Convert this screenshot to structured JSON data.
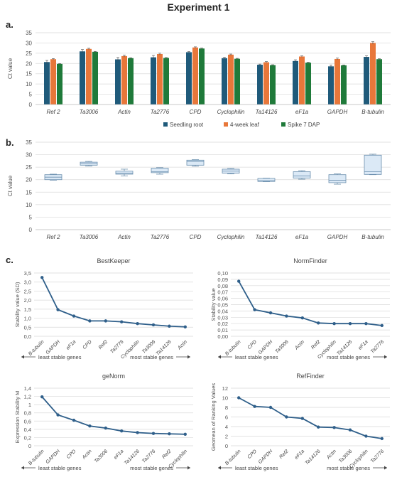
{
  "title": "Experiment 1",
  "panel_labels": [
    "a.",
    "b.",
    "c."
  ],
  "chart_data": [
    {
      "type": "bar",
      "panel": "a.",
      "ylabel": "Ct value",
      "ylim": [
        0,
        35
      ],
      "yticks": [
        0,
        5,
        10,
        15,
        20,
        25,
        30,
        35
      ],
      "categories": [
        "Ref 2",
        "Ta3006",
        "Actin",
        "Ta2776",
        "CPD",
        "Cyclophilin",
        "Ta14126",
        "eF1a",
        "GAPDH",
        "B-tubulin"
      ],
      "series": [
        {
          "name": "Seedling root",
          "color": "#1f5a7a",
          "values": [
            20.7,
            25.9,
            22.0,
            23.0,
            25.5,
            22.6,
            19.4,
            21.2,
            18.6,
            23.2
          ]
        },
        {
          "name": "4-week leaf",
          "color": "#e8773a",
          "values": [
            22.1,
            27.1,
            23.6,
            24.6,
            27.8,
            24.3,
            20.6,
            23.4,
            22.2,
            30.0
          ]
        },
        {
          "name": "Spike 7 DAP",
          "color": "#1f7a3a",
          "values": [
            19.8,
            25.7,
            22.6,
            22.7,
            27.3,
            22.3,
            19.2,
            20.4,
            19.1,
            22.1
          ]
        }
      ],
      "errors": [
        [
          0.8,
          0.9,
          0.9,
          0.9,
          0.3,
          0.4,
          0.3,
          0.6,
          0.6,
          0.5
        ],
        [
          0.3,
          0.3,
          0.5,
          0.4,
          0.3,
          0.3,
          0.3,
          0.3,
          0.4,
          0.6
        ],
        [
          0.2,
          0.2,
          0.2,
          0.2,
          0.2,
          0.2,
          0.2,
          0.2,
          0.2,
          0.2
        ]
      ],
      "legend": "bottom"
    },
    {
      "type": "boxplot",
      "panel": "b.",
      "ylabel": "Ct value",
      "ylim": [
        0,
        35
      ],
      "yticks": [
        0,
        5,
        10,
        15,
        20,
        25,
        30,
        35
      ],
      "categories": [
        "Ref 2",
        "Ta3006",
        "Actin",
        "Ta2776",
        "CPD",
        "Cyclophilin",
        "Ta14126",
        "eF1a",
        "GAPDH",
        "B-tubulin"
      ],
      "boxes": [
        {
          "min": 19.8,
          "q1": 20.0,
          "median": 21.0,
          "q3": 22.0,
          "max": 22.2
        },
        {
          "min": 25.5,
          "q1": 25.8,
          "median": 26.5,
          "q3": 27.0,
          "max": 27.3
        },
        {
          "min": 21.5,
          "q1": 22.2,
          "median": 22.6,
          "q3": 23.4,
          "max": 24.2
        },
        {
          "min": 22.2,
          "q1": 22.8,
          "median": 23.2,
          "q3": 24.6,
          "max": 24.8
        },
        {
          "min": 25.4,
          "q1": 25.8,
          "median": 27.3,
          "q3": 27.8,
          "max": 28.0
        },
        {
          "min": 22.3,
          "q1": 22.6,
          "median": 23.4,
          "q3": 24.2,
          "max": 24.5
        },
        {
          "min": 19.2,
          "q1": 19.3,
          "median": 19.6,
          "q3": 20.5,
          "max": 20.6
        },
        {
          "min": 20.2,
          "q1": 20.6,
          "median": 21.5,
          "q3": 23.2,
          "max": 23.6
        },
        {
          "min": 18.2,
          "q1": 18.8,
          "median": 19.8,
          "q3": 22.0,
          "max": 22.3
        },
        {
          "min": 22.0,
          "q1": 22.1,
          "median": 23.2,
          "q3": 29.8,
          "max": 30.2
        }
      ]
    },
    {
      "type": "line",
      "panel": "c.",
      "title": "BestKeeper",
      "ylabel": "Stability value (SD)",
      "ylim": [
        0,
        3.5
      ],
      "yticks": [
        "0,0",
        "0,5",
        "1,0",
        "1,5",
        "2,0",
        "2,5",
        "3,0",
        "3,5"
      ],
      "categories": [
        "B-tubulin",
        "GAPDH",
        "eF1a",
        "CPD",
        "Ref2",
        "Ta2776",
        "Cyclophilin",
        "Ta3006",
        "Ta14126",
        "Actin"
      ],
      "values": [
        3.25,
        1.47,
        1.12,
        0.85,
        0.85,
        0.8,
        0.7,
        0.63,
        0.56,
        0.52
      ],
      "arrow_left": "least stable genes",
      "arrow_right": "most stable genes"
    },
    {
      "type": "line",
      "panel": "c.",
      "title": "NormFinder",
      "ylabel": "Stability value",
      "ylim": [
        0,
        0.1
      ],
      "yticks": [
        "0,00",
        "0,01",
        "0,02",
        "0,03",
        "0,04",
        "0,05",
        "0,06",
        "0,07",
        "0,08",
        "0,09",
        "0,10"
      ],
      "categories": [
        "B-tubulin",
        "CPD",
        "GAPDH",
        "Ta3006",
        "Actin",
        "Ref2",
        "Cyclophilin",
        "Ta14126",
        "eF1a",
        "Ta2776"
      ],
      "values": [
        0.087,
        0.042,
        0.037,
        0.032,
        0.029,
        0.021,
        0.02,
        0.02,
        0.02,
        0.017
      ],
      "arrow_left": "least stable genes",
      "arrow_right": "most stable genes"
    },
    {
      "type": "line",
      "panel": "c.",
      "title": "geNorm",
      "ylabel": "Expression Stability M",
      "ylim": [
        0,
        1.4
      ],
      "yticks": [
        "0",
        "0,2",
        "0,4",
        "0,6",
        "0,8",
        "1",
        "1,2",
        "1,4"
      ],
      "categories": [
        "B-tubulin",
        "GAPDH",
        "CPD",
        "Actin",
        "Ta3006",
        "eF1a",
        "Ta14126",
        "Ta2776",
        "Ref2",
        "Cyclophilin"
      ],
      "values": [
        1.19,
        0.75,
        0.62,
        0.48,
        0.43,
        0.36,
        0.32,
        0.3,
        0.29,
        0.28
      ],
      "arrow_left": "least stable genes",
      "arrow_right": "most stable genes"
    },
    {
      "type": "line",
      "panel": "c.",
      "title": "RefFinder",
      "ylabel": "Geomean of Ranking Values",
      "ylim": [
        0,
        12
      ],
      "yticks": [
        "0",
        "2",
        "4",
        "6",
        "8",
        "10",
        "12"
      ],
      "categories": [
        "B-tubulin",
        "CPD",
        "GAPDH",
        "Ref2",
        "eF1a",
        "Ta14126",
        "Actin",
        "Ta3006",
        "Cyclophilin",
        "Ta2776"
      ],
      "values": [
        10.0,
        8.2,
        8.0,
        6.0,
        5.7,
        3.9,
        3.8,
        3.3,
        2.0,
        1.5
      ],
      "arrow_left": "least stable genes",
      "arrow_right": "most stable genes"
    }
  ]
}
